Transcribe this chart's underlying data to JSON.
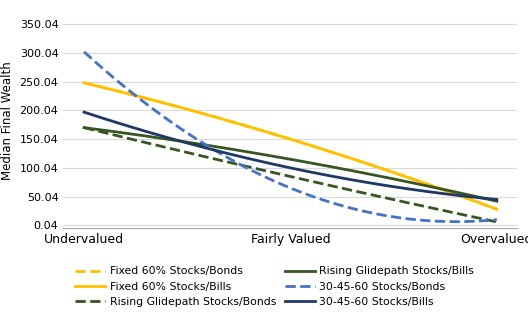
{
  "x_labels": [
    "Undervalued",
    "Fairly Valued",
    "Overvalued"
  ],
  "series": [
    {
      "label": "Fixed 60% Stocks/Bonds",
      "values": [
        248,
        150,
        28
      ],
      "color": "#FFC000",
      "linestyle": "dashed",
      "linewidth": 2.0
    },
    {
      "label": "Fixed 60% Stocks/Bills",
      "values": [
        248,
        150,
        28
      ],
      "color": "#FFC000",
      "linestyle": "solid",
      "linewidth": 2.0
    },
    {
      "label": "Rising Glidepath Stocks/Bonds",
      "values": [
        170,
        85,
        6
      ],
      "color": "#375623",
      "linestyle": "dashed",
      "linewidth": 2.0
    },
    {
      "label": "Rising Glidepath Stocks/Bills",
      "values": [
        170,
        115,
        42
      ],
      "color": "#375623",
      "linestyle": "solid",
      "linewidth": 2.0
    },
    {
      "label": "30-45-60 Stocks/Bonds",
      "values": [
        302,
        65,
        10
      ],
      "color": "#4472C4",
      "linestyle": "dashed",
      "linewidth": 2.0
    },
    {
      "label": "30-45-60 Stocks/Bills",
      "values": [
        197,
        100,
        45
      ],
      "color": "#1F3864",
      "linestyle": "solid",
      "linewidth": 2.0
    }
  ],
  "ylabel": "Median Final Wealth",
  "yticks": [
    0.04,
    50.04,
    100.04,
    150.04,
    200.04,
    250.04,
    300.04,
    350.04
  ],
  "ytick_labels": [
    "0.04",
    "50.04",
    "100.04",
    "150.04",
    "200.04",
    "250.04",
    "300.04",
    "350.04"
  ],
  "ylim": [
    -5,
    370
  ],
  "xlim": [
    -0.1,
    2.1
  ],
  "background_color": "#ffffff",
  "grid_color": "#d9d9d9",
  "legend_fontsize": 7.8
}
